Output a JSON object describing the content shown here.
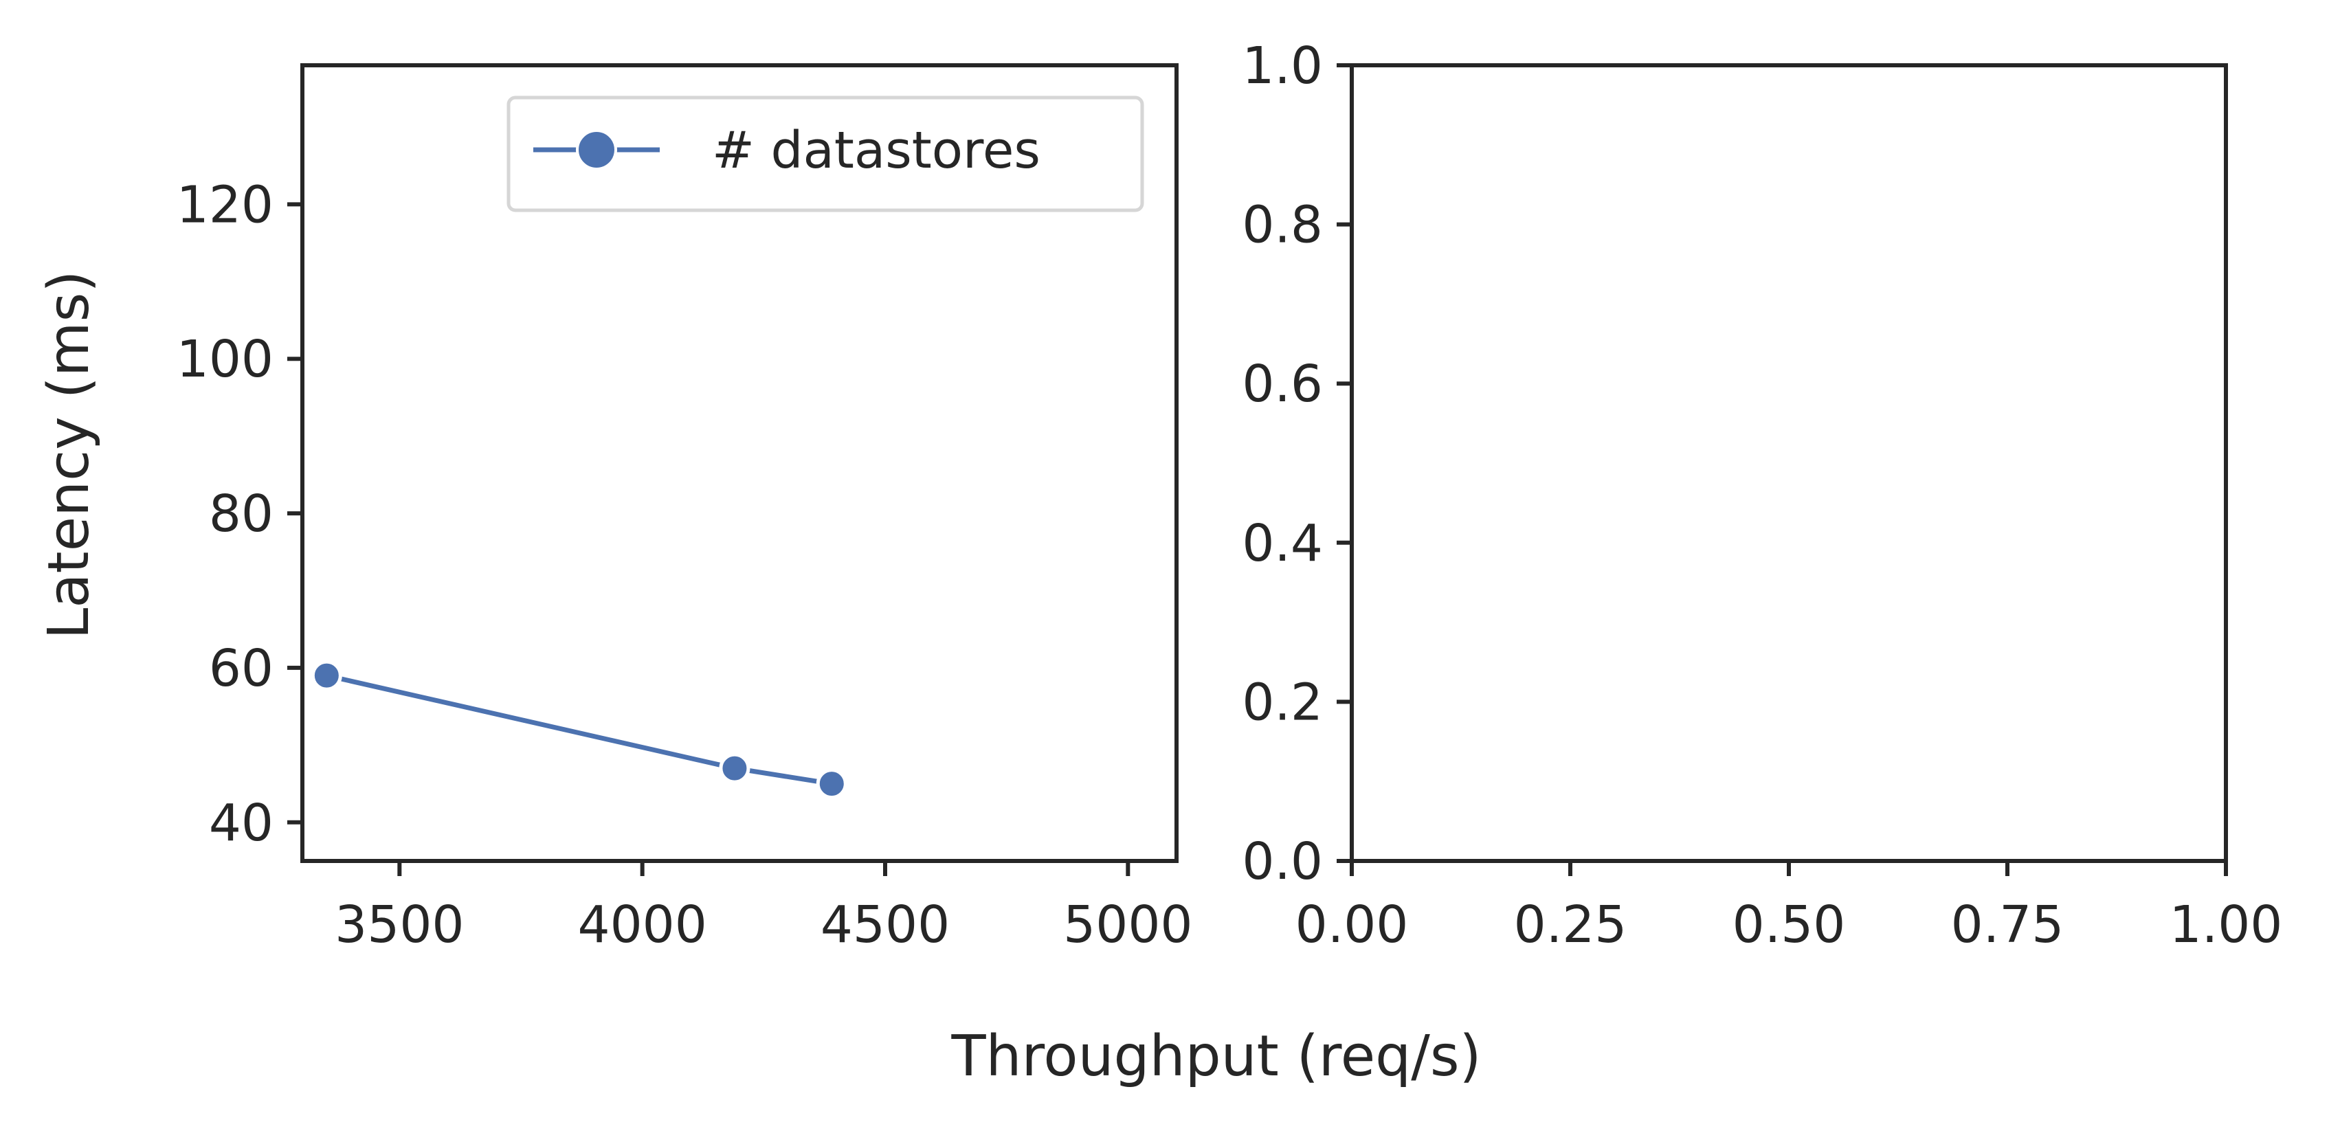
{
  "chart_data": [
    {
      "type": "line",
      "xlabel": "Throughput (req/s)",
      "ylabel": "Latency (ms)",
      "xlim": [
        3300,
        5100
      ],
      "ylim": [
        35,
        138
      ],
      "xticks": [
        3500,
        4000,
        4500,
        5000
      ],
      "xtick_labels": [
        "3500",
        "4000",
        "4500",
        "5000"
      ],
      "yticks": [
        40,
        60,
        80,
        100,
        120
      ],
      "ytick_labels": [
        "40",
        "60",
        "80",
        "100",
        "120"
      ],
      "grid": false,
      "legend_position": "top-right",
      "series": [
        {
          "name": "# datastores",
          "color": "#4c72b0",
          "marker": "circle",
          "points": [
            {
              "x": 3350,
              "y": 59
            },
            {
              "x": 4190,
              "y": 47
            },
            {
              "x": 4390,
              "y": 45
            }
          ]
        }
      ]
    },
    {
      "type": "line",
      "xlim": [
        0,
        1
      ],
      "ylim": [
        0,
        1
      ],
      "xticks": [
        0,
        0.25,
        0.5,
        0.75,
        1
      ],
      "xtick_labels": [
        "0.00",
        "0.25",
        "0.50",
        "0.75",
        "1.00"
      ],
      "yticks": [
        0,
        0.2,
        0.4,
        0.6,
        0.8,
        1
      ],
      "ytick_labels": [
        "0.0",
        "0.2",
        "0.4",
        "0.6",
        "0.8",
        "1.0"
      ],
      "grid": false,
      "series": []
    }
  ]
}
